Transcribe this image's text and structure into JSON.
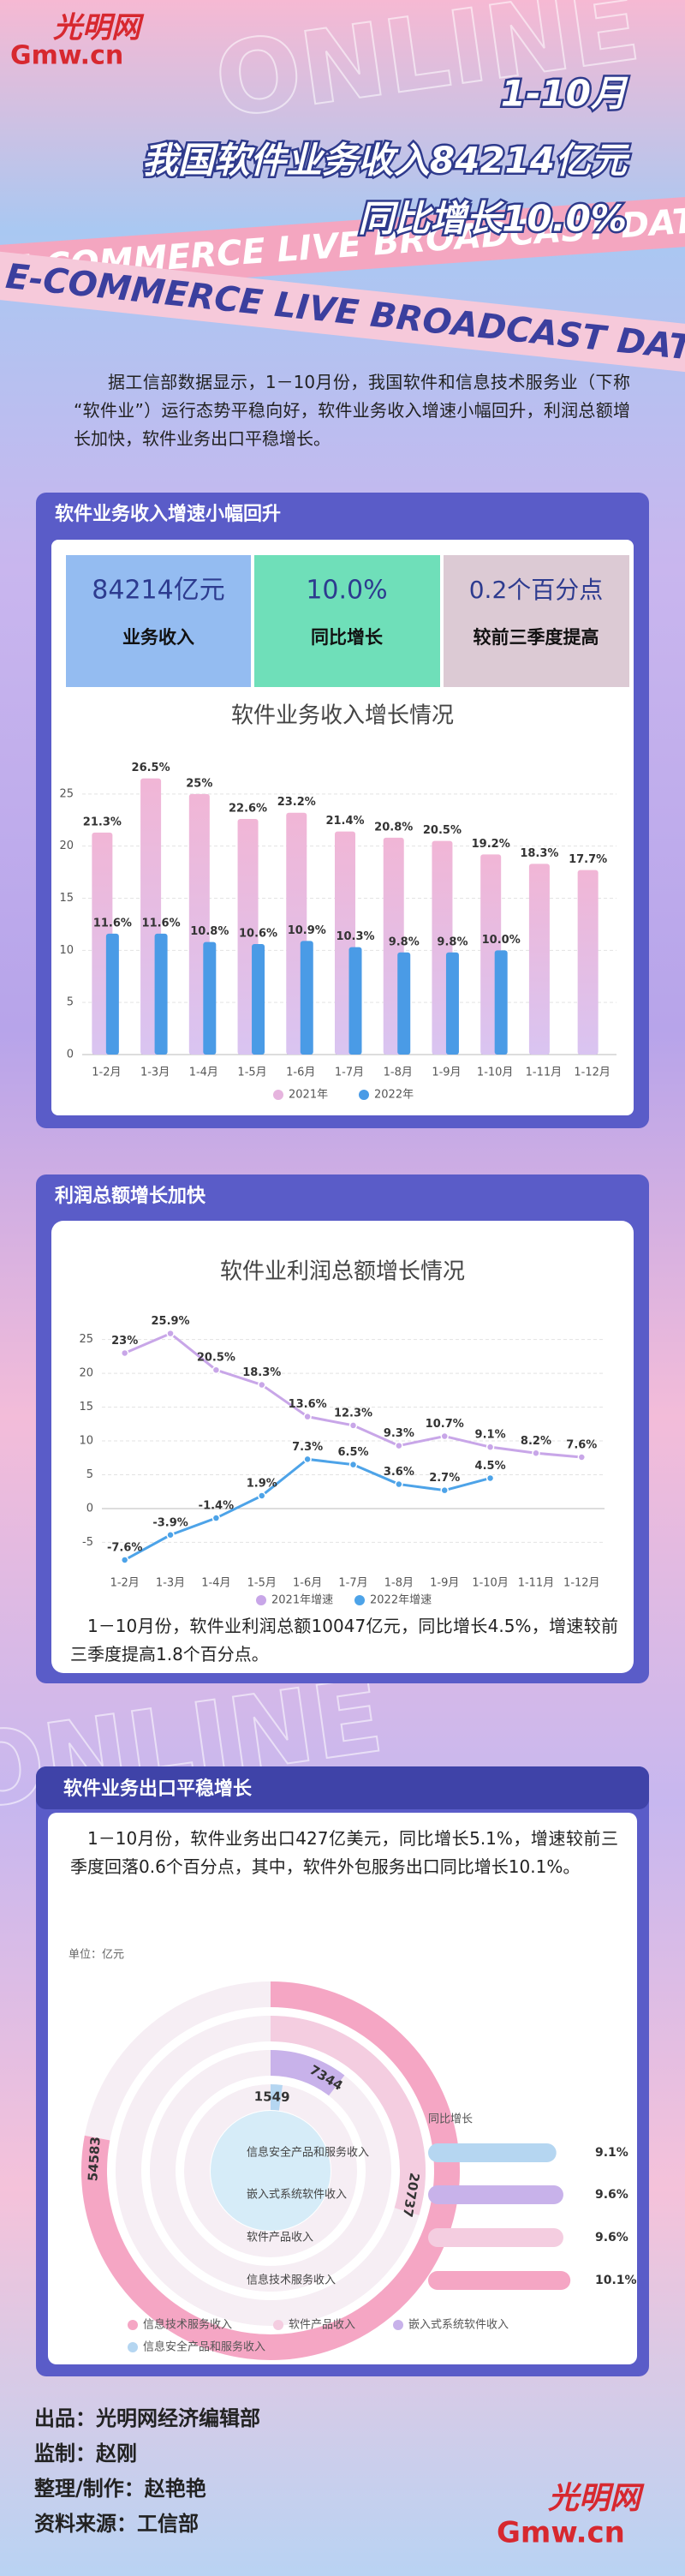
{
  "header": {
    "logo_cn": "光明网",
    "logo_en": "Gmw.cn",
    "watermark": "ONLINE",
    "ribbon": "E-COMMERCE LIVE BROADCAST DATA",
    "title_lines": [
      "1-10月",
      "我国软件业务收入84214亿元",
      "同比增长10.0%"
    ]
  },
  "intro": "据工信部数据显示，1－10月份，我国软件和信息技术服务业（下称“软件业”）运行态势平稳向好，软件业务收入增速小幅回升，利润总额增长加快，软件业务出口平稳增长。",
  "sections": [
    {
      "title": "软件业务收入增速小幅回升",
      "stats": [
        {
          "value": "84214亿元",
          "label": "业务收入"
        },
        {
          "value": "10.0%",
          "label": "同比增长"
        },
        {
          "value": "0.2个百分点",
          "label": "较前三季度提高"
        }
      ]
    },
    {
      "title": "利润总额增长加快",
      "text": "1－10月份，软件业利润总额10047亿元，同比增长4.5%，增速较前三季度提高1.8个百分点。"
    },
    {
      "title": "软件业务出口平稳增长",
      "text": "1－10月份，软件业务出口427亿美元，同比增长5.1%，增速较前三季度回落0.6个百分点，其中，软件外包服务出口同比增长10.1%。"
    }
  ],
  "chart_data": [
    {
      "type": "bar",
      "title": "软件业务收入增长情况",
      "categories": [
        "1-2月",
        "1-3月",
        "1-4月",
        "1-5月",
        "1-6月",
        "1-7月",
        "1-8月",
        "1-9月",
        "1-10月",
        "1-11月",
        "1-12月"
      ],
      "series": [
        {
          "name": "2021年",
          "color": "#e6b4de",
          "values": [
            21.3,
            26.5,
            25,
            22.6,
            23.2,
            21.4,
            20.8,
            20.5,
            19.2,
            18.3,
            17.7
          ],
          "value_labels": [
            "21.3%",
            "26.5%",
            "25%",
            "22.6%",
            "23.2%",
            "21.4%",
            "20.8%",
            "20.5%",
            "19.2%",
            "18.3%",
            "17.7%"
          ]
        },
        {
          "name": "2022年",
          "color": "#4a9be6",
          "values": [
            11.6,
            11.6,
            10.8,
            10.6,
            10.9,
            10.3,
            9.8,
            9.8,
            10.0,
            null,
            null
          ],
          "value_labels": [
            "11.6%",
            "11.6%",
            "10.8%",
            "10.6%",
            "10.9%",
            "10.3%",
            "9.8%",
            "9.8%",
            "10.0%",
            null,
            null
          ]
        }
      ],
      "ylim": [
        0,
        30
      ],
      "yticks": [
        0,
        5,
        10,
        15,
        20,
        25
      ],
      "grid": true
    },
    {
      "type": "line",
      "title": "软件业利润总额增长情况",
      "categories": [
        "1-2月",
        "1-3月",
        "1-4月",
        "1-5月",
        "1-6月",
        "1-7月",
        "1-8月",
        "1-9月",
        "1-10月",
        "1-11月",
        "1-12月"
      ],
      "series": [
        {
          "name": "2021年增速",
          "color": "#c8a6e8",
          "values": [
            23,
            25.9,
            20.5,
            18.3,
            13.6,
            12.3,
            9.3,
            10.7,
            9.1,
            8.2,
            7.6
          ],
          "value_labels": [
            "23%",
            "25.9%",
            "20.5%",
            "18.3%",
            "13.6%",
            "12.3%",
            "9.3%",
            "10.7%",
            "9.1%",
            "8.2%",
            "7.6%"
          ]
        },
        {
          "name": "2022年增速",
          "color": "#4da3e8",
          "values": [
            -7.6,
            -3.9,
            -1.4,
            1.9,
            7.3,
            6.5,
            3.6,
            2.7,
            4.5,
            null,
            null
          ],
          "value_labels": [
            "-7.6%",
            "-3.9%",
            "-1.4%",
            "1.9%",
            "7.3%",
            "6.5%",
            "3.6%",
            "2.7%",
            "4.5%",
            null,
            null
          ]
        }
      ],
      "ylim": [
        -9,
        28
      ],
      "yticks": [
        -5,
        0,
        5,
        10,
        15,
        20,
        25
      ],
      "grid": true
    },
    {
      "type": "radial_bar",
      "unit": "单位：亿元",
      "categories": [
        "信息技术服务收入",
        "软件产品收入",
        "嵌入式系统软件收入",
        "信息安全产品和服务收入"
      ],
      "colors": [
        "#f5a6c4",
        "#f4cde0",
        "#c8b2ea",
        "#b5d6f1"
      ],
      "values": [
        54583,
        20737,
        7344,
        1549
      ],
      "rlim": [
        0,
        70000
      ],
      "growth": {
        "title": "同比增长",
        "values": [
          10.1,
          9.6,
          9.6,
          9.1
        ],
        "value_labels": [
          "10.1%",
          "9.6%",
          "9.6%",
          "9.1%"
        ],
        "xlim": [
          0,
          11
        ]
      }
    }
  ],
  "footer": [
    "出品：光明网经济编辑部",
    "监制：赵刚",
    "整理/制作：赵艳艳",
    "资料来源：工信部"
  ]
}
